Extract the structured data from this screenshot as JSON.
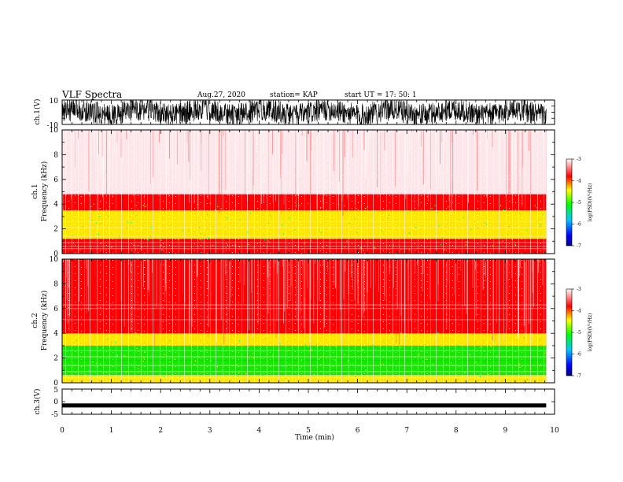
{
  "header": {
    "title": "VLF Spectra",
    "date": "Aug.27, 2020",
    "station": "station= KAP",
    "start": "start  UT  =    17: 50: 1"
  },
  "colors": {
    "spectrogram_background": "#e6001e",
    "colorbar": [
      "#000080",
      "#0000ff",
      "#00c8ff",
      "#00ff00",
      "#ffff00",
      "#ff0000",
      "#ffffff"
    ]
  },
  "chart_data": [
    {
      "type": "line",
      "panel": "ch1-waveform",
      "ylabel": "ch.1(V)",
      "yticks": [
        "10",
        "-10"
      ],
      "ylim": [
        -10,
        10
      ],
      "xlim": [
        0,
        10
      ],
      "data_extent_min": 9.83,
      "series": [
        {
          "values": "noise-like signal filling the range -10 to 10 V"
        }
      ]
    },
    {
      "type": "heatmap",
      "panel": "ch1-spectrogram",
      "ylabel": "ch.1\nFrequency (kHz)",
      "yticks": [
        "0",
        "2",
        "4",
        "6",
        "8",
        "10"
      ],
      "ylim": [
        0,
        10
      ],
      "xlim": [
        0,
        10
      ],
      "data_extent_min": 9.83,
      "bands": [
        {
          "from_khz": 0,
          "to_khz": 1.2,
          "level": -3.8
        },
        {
          "from_khz": 1.2,
          "to_khz": 3.5,
          "level": -4.5
        },
        {
          "from_khz": 3.5,
          "to_khz": 4.8,
          "level": -3.7
        },
        {
          "from_khz": 4.8,
          "to_khz": 10,
          "level": -3.3
        }
      ],
      "colorbar": {
        "label": "log(PSD)(V²/Hz)",
        "ticks": [
          "-3",
          "-4",
          "-5",
          "-6",
          "-7"
        ],
        "range": [
          -7,
          -3
        ]
      }
    },
    {
      "type": "heatmap",
      "panel": "ch2-spectrogram",
      "ylabel": "ch.2\nFrequency (kHz)",
      "yticks": [
        "0",
        "2",
        "4",
        "6",
        "8",
        "10"
      ],
      "ylim": [
        0,
        10
      ],
      "xlim": [
        0,
        10
      ],
      "data_extent_min": 9.83,
      "bands": [
        {
          "from_khz": 0,
          "to_khz": 0.6,
          "level": -4.6
        },
        {
          "from_khz": 0.6,
          "to_khz": 1.8,
          "level": -5.1
        },
        {
          "from_khz": 1.8,
          "to_khz": 3.0,
          "level": -5.2
        },
        {
          "from_khz": 3.0,
          "to_khz": 4.0,
          "level": -4.2
        },
        {
          "from_khz": 4.0,
          "to_khz": 10,
          "level": -3.8
        }
      ],
      "colorbar": {
        "label": "log(PSD)(V²/Hz)",
        "ticks": [
          "-3",
          "-4",
          "-5",
          "-6",
          "-7"
        ],
        "range": [
          -7,
          -3
        ]
      }
    },
    {
      "type": "line",
      "panel": "ch3-waveform",
      "ylabel": "ch.3(V)",
      "yticks": [
        "5",
        "0",
        "-5"
      ],
      "ylim": [
        -5,
        5
      ],
      "xlim": [
        0,
        10
      ],
      "data_extent_min": 9.83,
      "series": [
        {
          "values": "dense signal centred near -1.5 V"
        }
      ]
    }
  ],
  "xaxis": {
    "label": "Time (min)",
    "ticks": [
      "0",
      "1",
      "2",
      "3",
      "4",
      "5",
      "6",
      "7",
      "8",
      "9",
      "10"
    ]
  }
}
